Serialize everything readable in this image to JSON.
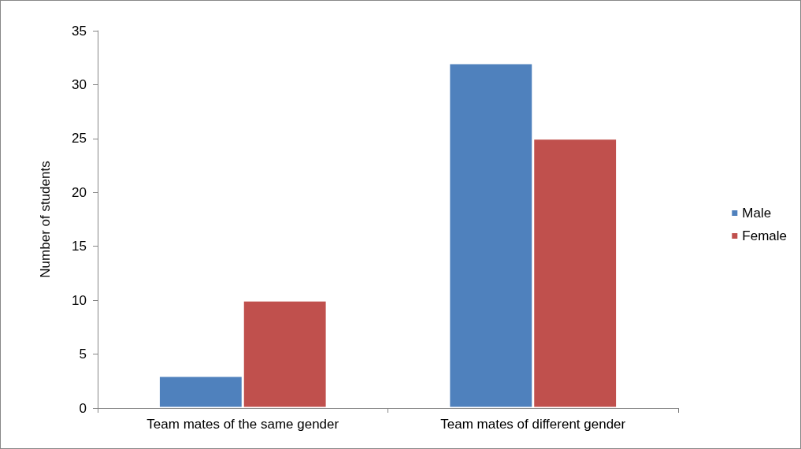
{
  "chart_data": {
    "type": "bar",
    "ylabel": "Number of students",
    "categories": [
      "Team mates of the same gender",
      "Team mates of different gender"
    ],
    "series": [
      {
        "name": "Male",
        "color": "#4f81bd",
        "values": [
          3,
          32
        ]
      },
      {
        "name": "Female",
        "color": "#c0504d",
        "values": [
          10,
          25
        ]
      }
    ],
    "ylim": [
      0,
      35
    ],
    "yticks": [
      0,
      5,
      10,
      15,
      20,
      25,
      30,
      35
    ],
    "grid": false,
    "legend": "right"
  }
}
